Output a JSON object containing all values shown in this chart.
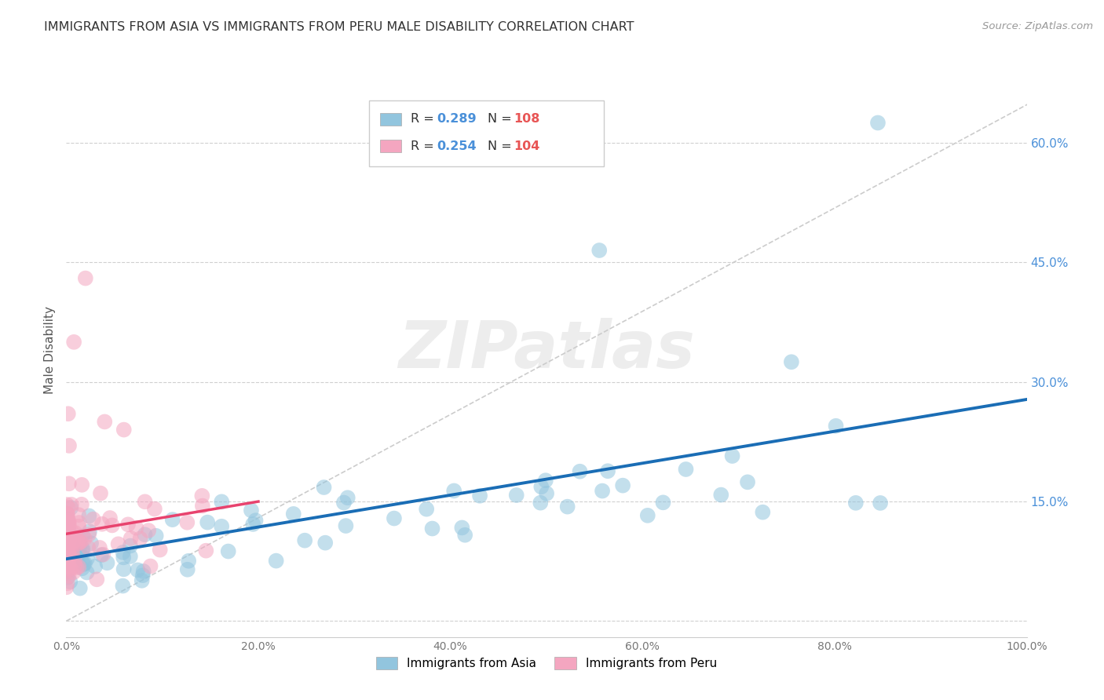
{
  "title": "IMMIGRANTS FROM ASIA VS IMMIGRANTS FROM PERU MALE DISABILITY CORRELATION CHART",
  "source": "Source: ZipAtlas.com",
  "ylabel": "Male Disability",
  "xlim": [
    0.0,
    1.0
  ],
  "ylim": [
    -0.02,
    0.7
  ],
  "xticks": [
    0.0,
    0.2,
    0.4,
    0.6,
    0.8,
    1.0
  ],
  "xticklabels": [
    "0.0%",
    "20.0%",
    "40.0%",
    "60.0%",
    "80.0%",
    "100.0%"
  ],
  "yticks_right": [
    0.15,
    0.3,
    0.45,
    0.6
  ],
  "yticklabels_right": [
    "15.0%",
    "30.0%",
    "45.0%",
    "60.0%"
  ],
  "yticks_grid": [
    0.0,
    0.15,
    0.3,
    0.45,
    0.6
  ],
  "legend_R_asia": "R = 0.289",
  "legend_N_asia": "N = 108",
  "legend_R_peru": "R = 0.254",
  "legend_N_peru": "N = 104",
  "asia_color": "#92c5de",
  "peru_color": "#f4a6c0",
  "asia_line_color": "#1a6db5",
  "peru_line_color": "#e8436e",
  "diag_line_color": "#cccccc",
  "watermark": "ZIPatlas",
  "background_color": "#ffffff",
  "grid_color": "#d0d0d0",
  "title_color": "#333333",
  "tick_color": "#777777",
  "right_tick_color": "#4a90d9",
  "legend_R_color": "#4a90d9",
  "legend_N_color": "#e85555",
  "source_color": "#999999",
  "label_color": "#555555"
}
